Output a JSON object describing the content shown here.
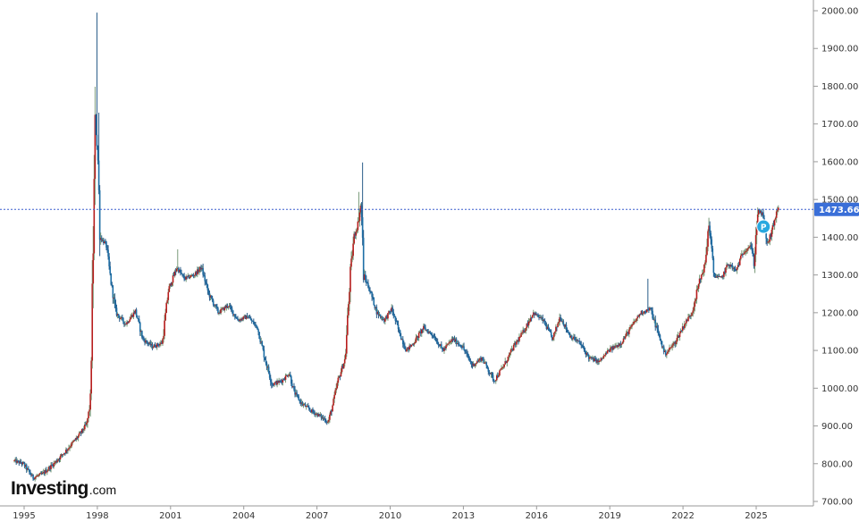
{
  "chart_data": {
    "type": "candlestick",
    "title": "",
    "xlabel": "",
    "ylabel": "",
    "ylim": [
      700,
      2000
    ],
    "y_ticks": [
      "2000.00",
      "1900.00",
      "1800.00",
      "1700.00",
      "1600.00",
      "1500.00",
      "1400.00",
      "1300.00",
      "1200.00",
      "1100.00",
      "1000.00",
      "900.00",
      "800.00",
      "700.00"
    ],
    "x_ticks": [
      "1995",
      "1998",
      "2001",
      "2004",
      "2007",
      "2010",
      "2013",
      "2016",
      "2019",
      "2022",
      "2025"
    ],
    "x_range": [
      1994.6,
      2026.1
    ],
    "current_price": "1473.66",
    "current_price_value": 1473.66,
    "grid": false,
    "legend": "none",
    "colors": {
      "up": "#b71c1c",
      "down": "#1e6fa6",
      "up_wick": "#7a9a7a",
      "down_wick": "#2a5d8a",
      "price_line": "#3a5fcd",
      "price_label_bg": "#3a6fd8",
      "marker": "#29a8df"
    },
    "marker": {
      "symbol": "P",
      "date": 2025.3,
      "value": 1428
    },
    "series_points": [
      {
        "x": 1994.6,
        "y": 808
      },
      {
        "x": 1995.0,
        "y": 800
      },
      {
        "x": 1995.4,
        "y": 763
      },
      {
        "x": 1995.8,
        "y": 773
      },
      {
        "x": 1996.3,
        "y": 803
      },
      {
        "x": 1996.8,
        "y": 838
      },
      {
        "x": 1997.3,
        "y": 876
      },
      {
        "x": 1997.6,
        "y": 905
      },
      {
        "x": 1997.75,
        "y": 960
      },
      {
        "x": 1997.85,
        "y": 1300
      },
      {
        "x": 1997.95,
        "y": 1700
      },
      {
        "x": 1998.05,
        "y": 1630
      },
      {
        "x": 1998.15,
        "y": 1400
      },
      {
        "x": 1998.4,
        "y": 1380
      },
      {
        "x": 1998.6,
        "y": 1280
      },
      {
        "x": 1998.8,
        "y": 1200
      },
      {
        "x": 1999.2,
        "y": 1170
      },
      {
        "x": 1999.6,
        "y": 1205
      },
      {
        "x": 1999.9,
        "y": 1130
      },
      {
        "x": 2000.3,
        "y": 1110
      },
      {
        "x": 2000.7,
        "y": 1120
      },
      {
        "x": 2000.95,
        "y": 1260
      },
      {
        "x": 2001.3,
        "y": 1320
      },
      {
        "x": 2001.6,
        "y": 1290
      },
      {
        "x": 2002.0,
        "y": 1300
      },
      {
        "x": 2002.3,
        "y": 1320
      },
      {
        "x": 2002.6,
        "y": 1250
      },
      {
        "x": 2003.0,
        "y": 1200
      },
      {
        "x": 2003.4,
        "y": 1220
      },
      {
        "x": 2003.8,
        "y": 1180
      },
      {
        "x": 2004.2,
        "y": 1190
      },
      {
        "x": 2004.6,
        "y": 1160
      },
      {
        "x": 2004.9,
        "y": 1080
      },
      {
        "x": 2005.2,
        "y": 1010
      },
      {
        "x": 2005.6,
        "y": 1020
      },
      {
        "x": 2005.9,
        "y": 1040
      },
      {
        "x": 2006.1,
        "y": 990
      },
      {
        "x": 2006.4,
        "y": 960
      },
      {
        "x": 2006.8,
        "y": 940
      },
      {
        "x": 2007.2,
        "y": 925
      },
      {
        "x": 2007.5,
        "y": 910
      },
      {
        "x": 2007.7,
        "y": 960
      },
      {
        "x": 2007.9,
        "y": 1020
      },
      {
        "x": 2008.2,
        "y": 1080
      },
      {
        "x": 2008.4,
        "y": 1300
      },
      {
        "x": 2008.55,
        "y": 1400
      },
      {
        "x": 2008.7,
        "y": 1430
      },
      {
        "x": 2008.85,
        "y": 1490
      },
      {
        "x": 2008.95,
        "y": 1300
      },
      {
        "x": 2009.2,
        "y": 1260
      },
      {
        "x": 2009.5,
        "y": 1200
      },
      {
        "x": 2009.8,
        "y": 1180
      },
      {
        "x": 2010.1,
        "y": 1210
      },
      {
        "x": 2010.4,
        "y": 1150
      },
      {
        "x": 2010.7,
        "y": 1100
      },
      {
        "x": 2011.0,
        "y": 1120
      },
      {
        "x": 2011.4,
        "y": 1160
      },
      {
        "x": 2011.8,
        "y": 1140
      },
      {
        "x": 2012.2,
        "y": 1100
      },
      {
        "x": 2012.6,
        "y": 1130
      },
      {
        "x": 2013.0,
        "y": 1110
      },
      {
        "x": 2013.4,
        "y": 1060
      },
      {
        "x": 2013.8,
        "y": 1080
      },
      {
        "x": 2014.3,
        "y": 1020
      },
      {
        "x": 2014.7,
        "y": 1060
      },
      {
        "x": 2015.1,
        "y": 1110
      },
      {
        "x": 2015.5,
        "y": 1150
      },
      {
        "x": 2015.9,
        "y": 1200
      },
      {
        "x": 2016.3,
        "y": 1180
      },
      {
        "x": 2016.7,
        "y": 1130
      },
      {
        "x": 2017.0,
        "y": 1190
      },
      {
        "x": 2017.4,
        "y": 1140
      },
      {
        "x": 2017.8,
        "y": 1120
      },
      {
        "x": 2018.2,
        "y": 1080
      },
      {
        "x": 2018.6,
        "y": 1070
      },
      {
        "x": 2019.0,
        "y": 1100
      },
      {
        "x": 2019.5,
        "y": 1120
      },
      {
        "x": 2019.9,
        "y": 1160
      },
      {
        "x": 2020.3,
        "y": 1200
      },
      {
        "x": 2020.7,
        "y": 1210
      },
      {
        "x": 2021.1,
        "y": 1130
      },
      {
        "x": 2021.3,
        "y": 1090
      },
      {
        "x": 2021.7,
        "y": 1120
      },
      {
        "x": 2022.1,
        "y": 1170
      },
      {
        "x": 2022.4,
        "y": 1200
      },
      {
        "x": 2022.7,
        "y": 1280
      },
      {
        "x": 2022.95,
        "y": 1330
      },
      {
        "x": 2023.1,
        "y": 1440
      },
      {
        "x": 2023.3,
        "y": 1300
      },
      {
        "x": 2023.6,
        "y": 1290
      },
      {
        "x": 2023.9,
        "y": 1330
      },
      {
        "x": 2024.2,
        "y": 1310
      },
      {
        "x": 2024.5,
        "y": 1360
      },
      {
        "x": 2024.8,
        "y": 1380
      },
      {
        "x": 2024.95,
        "y": 1330
      },
      {
        "x": 2025.1,
        "y": 1470
      },
      {
        "x": 2025.3,
        "y": 1460
      },
      {
        "x": 2025.5,
        "y": 1380
      },
      {
        "x": 2025.7,
        "y": 1420
      },
      {
        "x": 2025.9,
        "y": 1474
      }
    ]
  },
  "branding": {
    "logo_main": "Investing",
    "logo_sub": ".com"
  }
}
